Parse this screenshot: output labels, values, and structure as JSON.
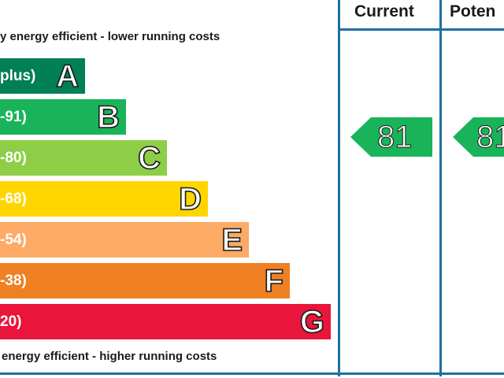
{
  "header": {
    "current_label": "Current",
    "potential_label": "Poten"
  },
  "captions": {
    "top": "y energy efficient - lower running costs",
    "bottom": "energy efficient - higher running costs"
  },
  "chart_data": {
    "type": "bar",
    "categories": [
      "A",
      "B",
      "C",
      "D",
      "E",
      "F",
      "G"
    ],
    "range_labels": [
      "plus)",
      "-91)",
      "-80)",
      "-68)",
      "-54)",
      "-38)",
      "20)"
    ],
    "colors": [
      "#008054",
      "#19b459",
      "#8dce46",
      "#ffd500",
      "#fcaa65",
      "#ef8023",
      "#e9153b"
    ],
    "current": {
      "value": 81,
      "band": "B",
      "color": "#19b459"
    },
    "potential": {
      "value": 81,
      "band": "B",
      "color": "#19b459"
    }
  }
}
